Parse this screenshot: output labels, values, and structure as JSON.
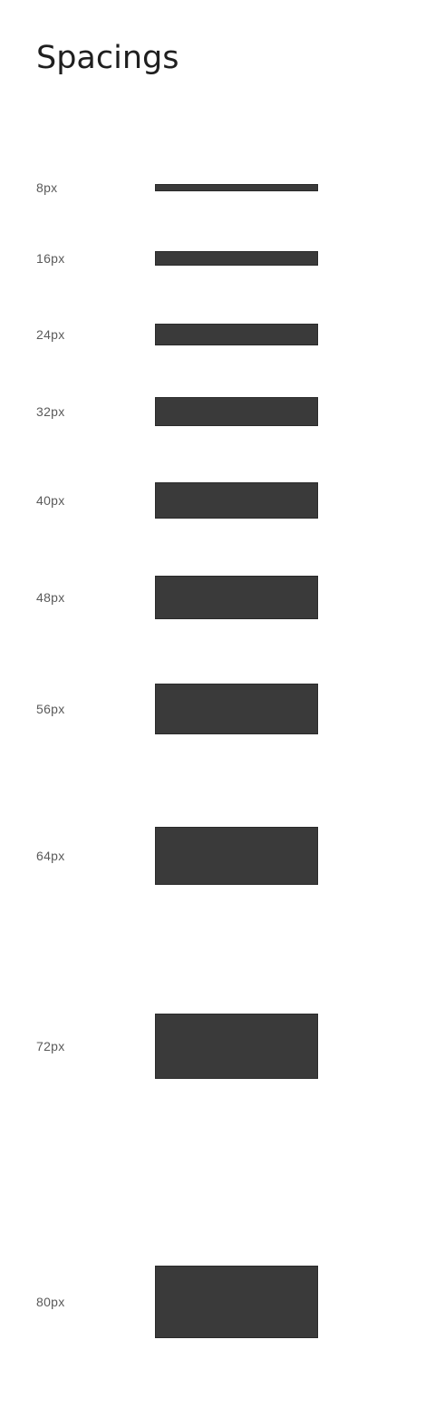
{
  "page": {
    "title": "Spacings"
  },
  "swatch_color": "#3a3a3a",
  "spacings": [
    {
      "label": "8px",
      "value": 8
    },
    {
      "label": "16px",
      "value": 16
    },
    {
      "label": "24px",
      "value": 24
    },
    {
      "label": "32px",
      "value": 32
    },
    {
      "label": "40px",
      "value": 40
    },
    {
      "label": "48px",
      "value": 48
    },
    {
      "label": "56px",
      "value": 56
    },
    {
      "label": "64px",
      "value": 64
    },
    {
      "label": "72px",
      "value": 72
    },
    {
      "label": "80px",
      "value": 80
    }
  ]
}
